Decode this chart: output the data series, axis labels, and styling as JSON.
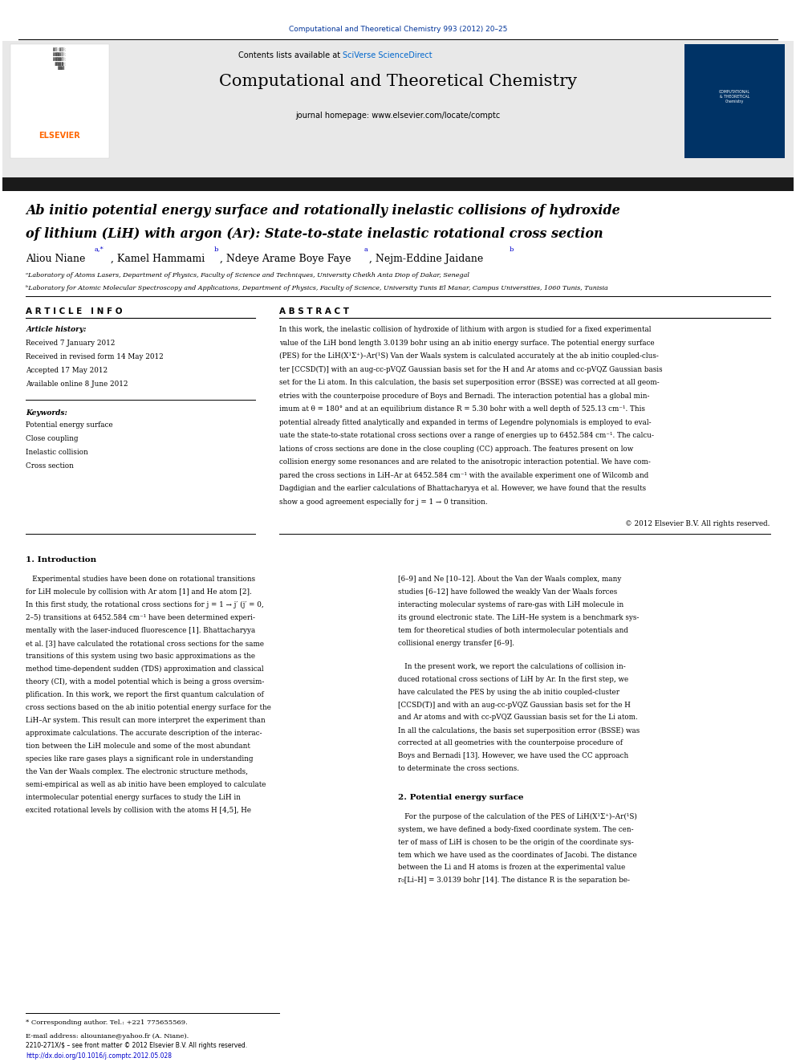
{
  "page_width": 9.92,
  "page_height": 13.23,
  "bg_color": "#ffffff",
  "header_journal_text": "Computational and Theoretical Chemistry 993 (2012) 20–25",
  "header_journal_color": "#003399",
  "journal_name": "Computational and Theoretical Chemistry",
  "contents_text": "Contents lists available at ",
  "sciverse_text": "SciVerse ScienceDirect",
  "sciverse_color": "#0066cc",
  "journal_homepage": "journal homepage: www.elsevier.com/locate/comptc",
  "elsevier_color": "#FF6600",
  "header_bg": "#e8e8e8",
  "black_bar_color": "#1a1a1a",
  "paper_title_line1": "Ab initio potential energy surface and rotationally inelastic collisions of hydroxide",
  "paper_title_line2": "of lithium (LiH) with argon (Ar): State-to-state inelastic rotational cross section",
  "affil_a": "ᵃLaboratory of Atoms Lasers, Department of Physics, Faculty of Science and Techniques, University Cheikh Anta Diop of Dakar, Senegal",
  "affil_b": "ᵇLaboratory for Atomic Molecular Spectroscopy and Applications, Department of Physics, Faculty of Science, University Tunis El Manar, Campus Universities, 1060 Tunis, Tunisia",
  "article_info_header": "A R T I C L E   I N F O",
  "abstract_header": "A B S T R A C T",
  "article_history_label": "Article history:",
  "received1": "Received 7 January 2012",
  "received2": "Received in revised form 14 May 2012",
  "accepted": "Accepted 17 May 2012",
  "available": "Available online 8 June 2012",
  "keywords_label": "Keywords:",
  "keyword1": "Potential energy surface",
  "keyword2": "Close coupling",
  "keyword3": "Inelastic collision",
  "keyword4": "Cross section",
  "copyright_text": "© 2012 Elsevier B.V. All rights reserved.",
  "intro_header": "1. Introduction",
  "section2_header": "2. Potential energy surface",
  "footnote_star": "* Corresponding author. Tel.: +221 775655569.",
  "footnote_email": "E-mail address: aliouniane@yahoo.fr (A. Niane).",
  "issn_text": "2210-271X/$ – see front matter © 2012 Elsevier B.V. All rights reserved.",
  "doi_text": "http://dx.doi.org/10.1016/j.comptc.2012.05.028",
  "link_color": "#0000cc",
  "abstract_lines": [
    "In this work, the inelastic collision of hydroxide of lithium with argon is studied for a fixed experimental",
    "value of the LiH bond length 3.0139 bohr using an ab initio energy surface. The potential energy surface",
    "(PES) for the LiH(X¹Σ⁺)–Ar(¹S) Van der Waals system is calculated accurately at the ab initio coupled-clus-",
    "ter [CCSD(T)] with an aug-cc-pVQZ Gaussian basis set for the H and Ar atoms and cc-pVQZ Gaussian basis",
    "set for the Li atom. In this calculation, the basis set superposition error (BSSE) was corrected at all geom-",
    "etries with the counterpoise procedure of Boys and Bernadi. The interaction potential has a global min-",
    "imum at θ = 180° and at an equilibrium distance R = 5.30 bohr with a well depth of 525.13 cm⁻¹. This",
    "potential already fitted analytically and expanded in terms of Legendre polynomials is employed to eval-",
    "uate the state-to-state rotational cross sections over a range of energies up to 6452.584 cm⁻¹. The calcu-",
    "lations of cross sections are done in the close coupling (CC) approach. The features present on low",
    "collision energy some resonances and are related to the anisotropic interaction potential. We have com-",
    "pared the cross sections in LiH–Ar at 6452.584 cm⁻¹ with the available experiment one of Wilcomb and",
    "Dagdigian and the earlier calculations of Bhattacharyya et al. However, we have found that the results",
    "show a good agreement especially for j = 1 → 0 transition."
  ],
  "intro_col1": [
    "   Experimental studies have been done on rotational transitions",
    "for LiH molecule by collision with Ar atom [1] and He atom [2].",
    "In this first study, the rotational cross sections for j = 1 → j′ (j′ = 0,",
    "2–5) transitions at 6452.584 cm⁻¹ have been determined experi-",
    "mentally with the laser-induced fluorescence [1]. Bhattacharyya",
    "et al. [3] have calculated the rotational cross sections for the same",
    "transitions of this system using two basic approximations as the",
    "method time-dependent sudden (TDS) approximation and classical",
    "theory (CI), with a model potential which is being a gross oversim-",
    "plification. In this work, we report the first quantum calculation of",
    "cross sections based on the ab initio potential energy surface for the",
    "LiH–Ar system. This result can more interpret the experiment than",
    "approximate calculations. The accurate description of the interac-",
    "tion between the LiH molecule and some of the most abundant",
    "species like rare gases plays a significant role in understanding",
    "the Van der Waals complex. The electronic structure methods,",
    "semi-empirical as well as ab initio have been employed to calculate",
    "intermolecular potential energy surfaces to study the LiH in",
    "excited rotational levels by collision with the atoms H [4,5], He"
  ],
  "intro_col2_p1": [
    "[6–9] and Ne [10–12]. About the Van der Waals complex, many",
    "studies [6–12] have followed the weakly Van der Waals forces",
    "interacting molecular systems of rare-gas with LiH molecule in",
    "its ground electronic state. The LiH–He system is a benchmark sys-",
    "tem for theoretical studies of both intermolecular potentials and",
    "collisional energy transfer [6–9]."
  ],
  "intro_col2_p2": [
    "   In the present work, we report the calculations of collision in-",
    "duced rotational cross sections of LiH by Ar. In the first step, we",
    "have calculated the PES by using the ab initio coupled-cluster",
    "[CCSD(T)] and with an aug-cc-pVQZ Gaussian basis set for the H",
    "and Ar atoms and with cc-pVQZ Gaussian basis set for the Li atom.",
    "In all the calculations, the basis set superposition error (BSSE) was",
    "corrected at all geometries with the counterpoise procedure of",
    "Boys and Bernadi [13]. However, we have used the CC approach",
    "to determinate the cross sections."
  ],
  "sec2_col2": [
    "   For the purpose of the calculation of the PES of LiH(X¹Σ⁺)–Ar(¹S)",
    "system, we have defined a body-fixed coordinate system. The cen-",
    "ter of mass of LiH is chosen to be the origin of the coordinate sys-",
    "tem which we have used as the coordinates of Jacobi. The distance",
    "between the Li and H atoms is frozen at the experimental value",
    "r₀[Li–H] = 3.0139 bohr [14]. The distance R is the separation be-"
  ]
}
